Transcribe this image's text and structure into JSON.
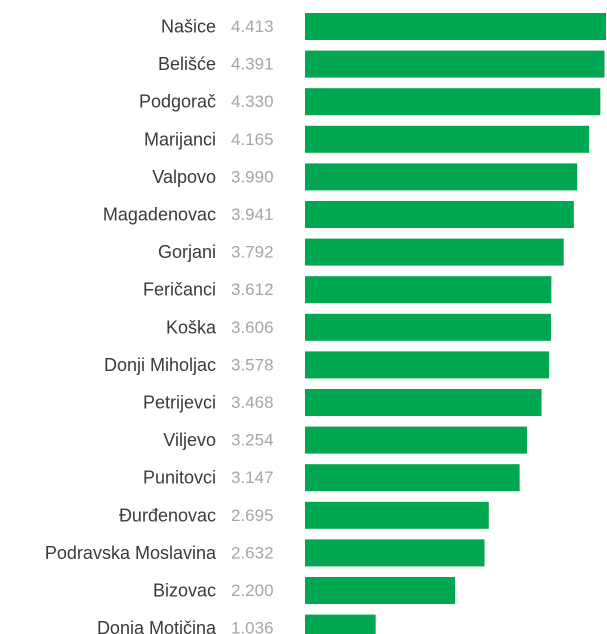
{
  "chart_data": {
    "type": "bar",
    "orientation": "horizontal",
    "categories": [
      "Našice",
      "Belišće",
      "Podgorač",
      "Marijanci",
      "Valpovo",
      "Magadenovac",
      "Gorjani",
      "Feričanci",
      "Koška",
      "Donji Miholjac",
      "Petrijevci",
      "Viljevo",
      "Punitovci",
      "Đurđenovac",
      "Podravska Moslavina",
      "Bizovac",
      "Donja Motičina"
    ],
    "values": [
      4413,
      4391,
      4330,
      4165,
      3990,
      3941,
      3792,
      3612,
      3606,
      3578,
      3468,
      3254,
      3147,
      2695,
      2632,
      2200,
      1036
    ],
    "value_labels": [
      "4.413",
      "4.391",
      "4.330",
      "4.165",
      "3.990",
      "3.941",
      "3.792",
      "3.612",
      "3.606",
      "3.578",
      "3.468",
      "3.254",
      "3.147",
      "2.695",
      "2.632",
      "2.200",
      "1.036"
    ],
    "xlim": [
      0,
      4413
    ],
    "grid": false,
    "legend": "none",
    "bar_color": "#00a650",
    "category_label_color": "#3a3a3a",
    "value_label_color": "#a6a6a6"
  }
}
